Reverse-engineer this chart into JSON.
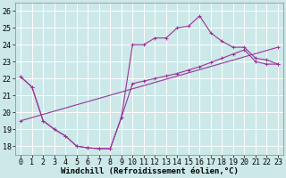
{
  "xlabel": "Windchill (Refroidissement éolien,°C)",
  "bg_color": "#cce8e8",
  "grid_color": "#ffffff",
  "line_color": "#993399",
  "xlim": [
    -0.5,
    23.5
  ],
  "ylim": [
    17.5,
    26.5
  ],
  "yticks": [
    18,
    19,
    20,
    21,
    22,
    23,
    24,
    25,
    26
  ],
  "xticks": [
    0,
    1,
    2,
    3,
    4,
    5,
    6,
    7,
    8,
    9,
    10,
    11,
    12,
    13,
    14,
    15,
    16,
    17,
    18,
    19,
    20,
    21,
    22,
    23
  ],
  "series1_x": [
    0,
    1,
    2,
    3,
    4,
    5,
    6,
    7,
    8,
    9,
    10,
    11,
    12,
    13,
    14,
    15,
    16,
    17,
    18,
    19,
    20,
    21,
    22,
    23
  ],
  "series1_y": [
    22.1,
    21.5,
    19.5,
    19.0,
    18.6,
    18.0,
    17.9,
    17.85,
    17.85,
    19.7,
    24.0,
    24.0,
    24.4,
    24.4,
    25.0,
    25.1,
    25.7,
    24.7,
    24.2,
    23.85,
    23.85,
    23.2,
    23.1,
    22.85
  ],
  "series2_x": [
    0,
    1,
    2,
    3,
    4,
    5,
    6,
    7,
    8,
    9,
    10,
    11,
    12,
    13,
    14,
    15,
    16,
    17,
    18,
    19,
    20,
    21,
    22,
    23
  ],
  "series2_y": [
    22.1,
    21.5,
    19.5,
    19.0,
    18.6,
    18.0,
    17.9,
    17.85,
    17.85,
    19.7,
    21.7,
    21.85,
    22.0,
    22.15,
    22.3,
    22.5,
    22.7,
    22.95,
    23.2,
    23.45,
    23.7,
    23.0,
    22.85,
    22.85
  ],
  "series3_x": [
    0,
    23
  ],
  "series3_y": [
    19.5,
    23.85
  ],
  "marker_size": 2.5,
  "font_family": "monospace",
  "font_size_label": 6.5,
  "font_size_tick": 6
}
